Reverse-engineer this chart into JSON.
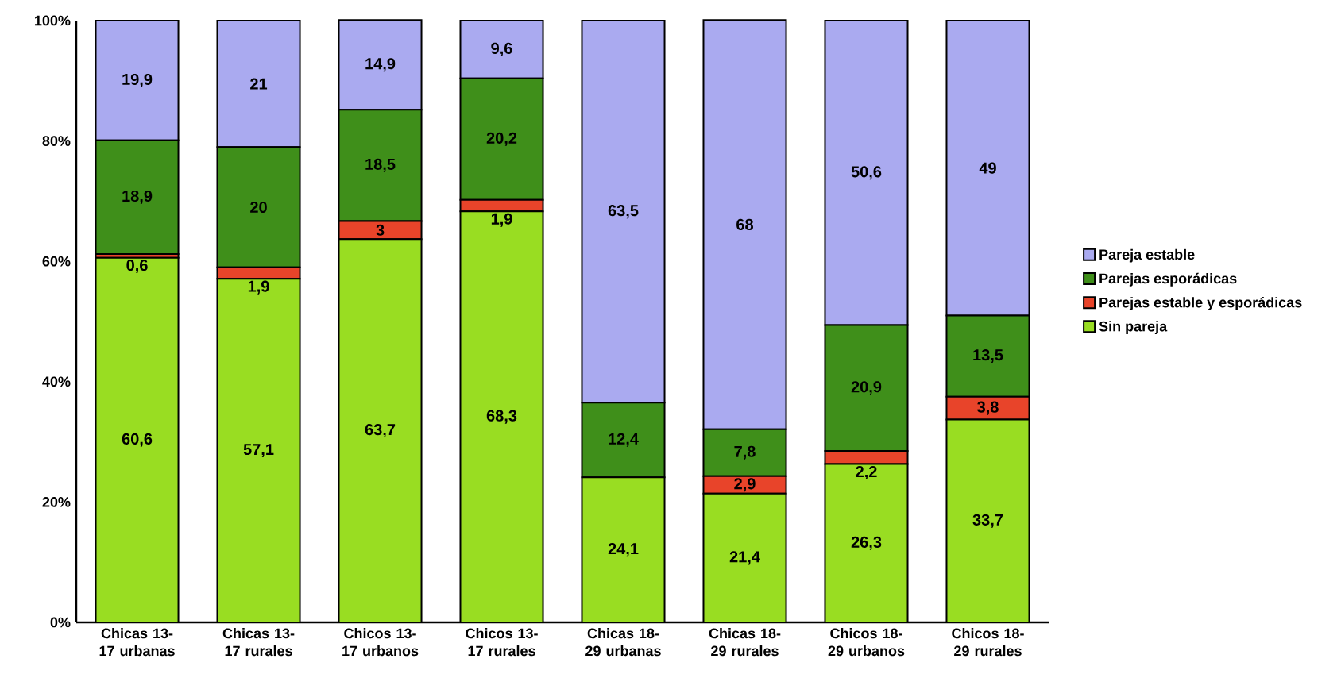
{
  "chart_data": {
    "type": "bar",
    "stacked": true,
    "legend": "right",
    "grid": false,
    "categories": [
      "Chicas 13-17 urbanas",
      "Chicas 13-17 rurales",
      "Chicos 13-17 urbanos",
      "Chicos 13-17 rurales",
      "Chicas 18-29 urbanas",
      "Chicas 18-29 rurales",
      "Chicos 18-29 urbanos",
      "Chicos 18-29 rurales"
    ],
    "ylim": [
      0,
      100
    ],
    "yticks": [
      {
        "value": 0,
        "label": "0%"
      },
      {
        "value": 20,
        "label": "20%"
      },
      {
        "value": 40,
        "label": "40%"
      },
      {
        "value": 60,
        "label": "60%"
      },
      {
        "value": 80,
        "label": "80%"
      },
      {
        "value": 100,
        "label": "100%"
      }
    ],
    "series": [
      {
        "name": "Sin pareja",
        "color": "#99dd22",
        "values": [
          60.6,
          57.1,
          63.7,
          68.3,
          24.1,
          21.4,
          26.3,
          33.7
        ],
        "value_labels": [
          "60,6",
          "57,1",
          "63,7",
          "68,3",
          "24,1",
          "21,4",
          "26,3",
          "33,7"
        ]
      },
      {
        "name": "Parejas estable y esporádicas",
        "color": "#e8442a",
        "values": [
          0.6,
          1.9,
          3,
          1.9,
          0,
          2.9,
          2.2,
          3.8
        ],
        "value_labels": [
          "0,6",
          "1,9",
          "3",
          "1,9",
          null,
          "2,9",
          "2,2",
          "3,8"
        ]
      },
      {
        "name": "Parejas esporádicas",
        "color": "#3f8f1a",
        "values": [
          18.9,
          20,
          18.5,
          20.2,
          12.4,
          7.8,
          20.9,
          13.5
        ],
        "value_labels": [
          "18,9",
          "20",
          "18,5",
          "20,2",
          "12,4",
          "7,8",
          "20,9",
          "13,5"
        ]
      },
      {
        "name": "Pareja estable",
        "color": "#aaaaf0",
        "values": [
          19.9,
          21,
          14.9,
          9.6,
          63.5,
          68,
          50.6,
          49
        ],
        "value_labels": [
          "19,9",
          "21",
          "14,9",
          "9,6",
          "63,5",
          "68",
          "50,6",
          "49"
        ]
      }
    ]
  }
}
